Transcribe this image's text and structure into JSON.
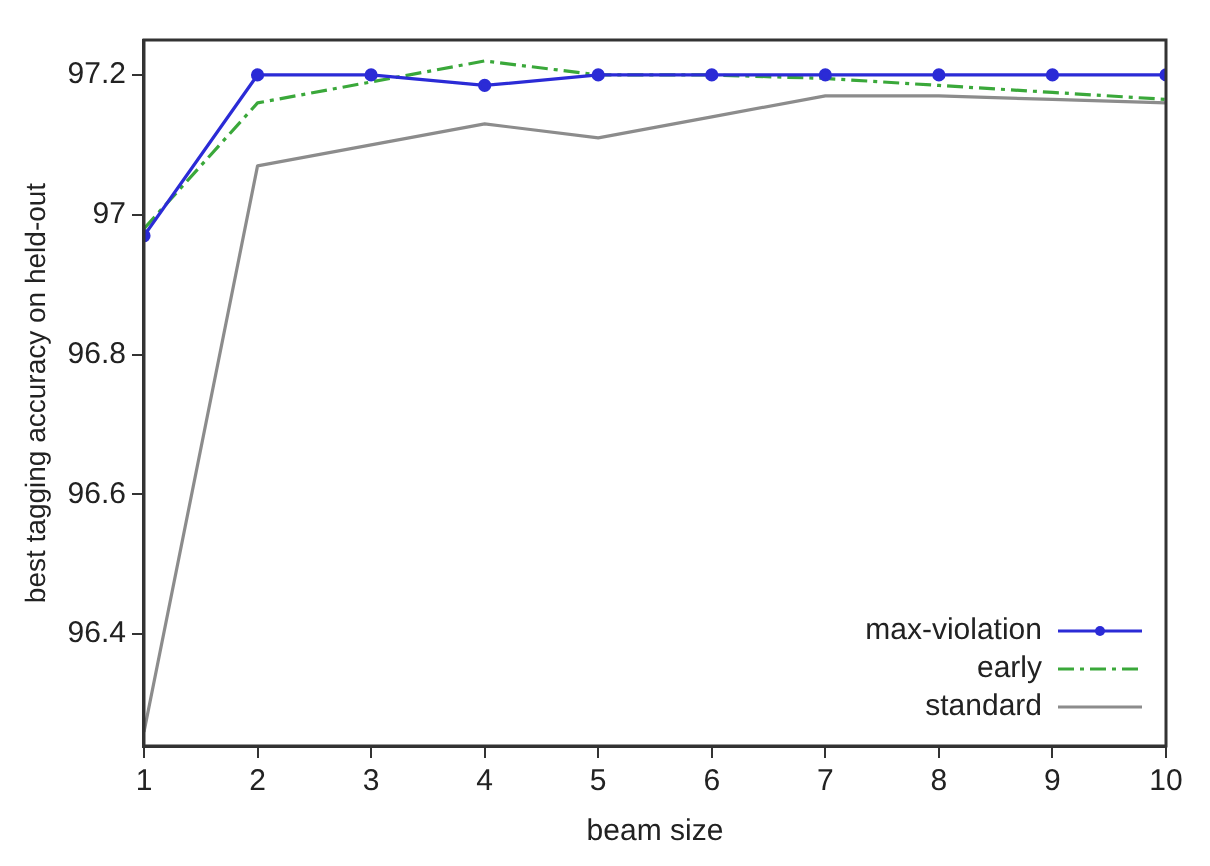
{
  "chart_data": {
    "type": "line",
    "xlabel": "beam size",
    "ylabel": "best tagging accuracy on held-out",
    "x": [
      1,
      2,
      3,
      4,
      5,
      6,
      7,
      8,
      9,
      10
    ],
    "series": [
      {
        "name": "max-violation",
        "color": "#2b2bd6",
        "marker": "circle",
        "line_style": "solid",
        "values": [
          96.97,
          97.2,
          97.2,
          97.185,
          97.2,
          97.2,
          97.2,
          97.2,
          97.2,
          97.2
        ]
      },
      {
        "name": "early",
        "color": "#3aa83a",
        "marker": "none",
        "line_style": "dashed",
        "values": [
          96.98,
          97.16,
          97.19,
          97.22,
          97.2,
          97.2,
          97.195,
          97.185,
          97.175,
          97.165
        ]
      },
      {
        "name": "standard",
        "color": "#8c8c8c",
        "marker": "none",
        "line_style": "solid",
        "values": [
          96.26,
          97.07,
          97.1,
          97.13,
          97.11,
          97.14,
          97.17,
          97.17,
          97.165,
          97.16
        ]
      }
    ],
    "xlim": [
      1,
      10
    ],
    "xticks": [
      1,
      2,
      3,
      4,
      5,
      6,
      7,
      8,
      9,
      10
    ],
    "ylim": [
      96.24,
      97.25
    ],
    "yticks": [
      96.4,
      96.6,
      96.8,
      97,
      97.2
    ],
    "grid": false,
    "legend": "bottom right"
  }
}
